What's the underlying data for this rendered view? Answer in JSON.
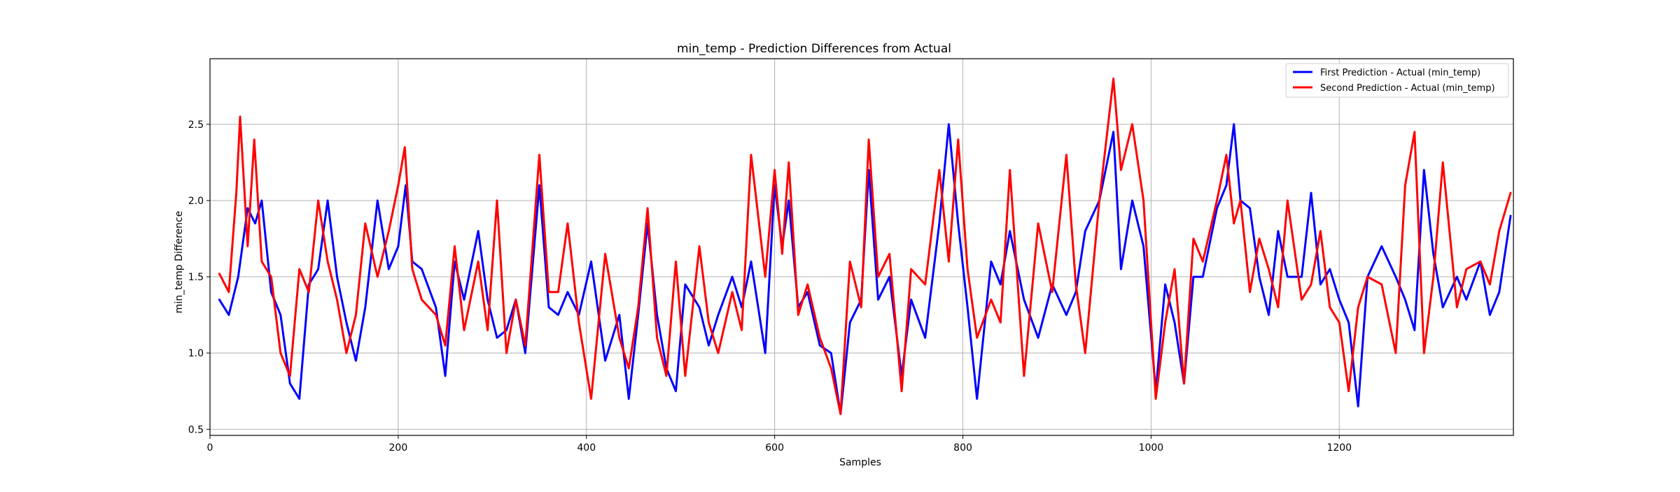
{
  "chart_data": {
    "type": "line",
    "title": "min_temp - Prediction Differences from Actual",
    "xlabel": "Samples",
    "ylabel": "min_temp Difference",
    "xlim": [
      0,
      1385
    ],
    "ylim": [
      0.46,
      2.93
    ],
    "xticks": [
      0,
      200,
      400,
      600,
      800,
      1000,
      1200
    ],
    "yticks": [
      0.5,
      1.0,
      1.5,
      2.0,
      2.5
    ],
    "xtick_labels": [
      "0",
      "200",
      "400",
      "600",
      "800",
      "1000",
      "1200"
    ],
    "ytick_labels": [
      "0.5",
      "1.0",
      "1.5",
      "2.0",
      "2.5"
    ],
    "grid": true,
    "legend_position": "top-right",
    "series": [
      {
        "name": "First Prediction - Actual (min_temp)",
        "color": "#0000ff",
        "x": [
          10,
          20,
          30,
          40,
          48,
          55,
          65,
          75,
          85,
          95,
          105,
          115,
          125,
          135,
          145,
          155,
          165,
          178,
          190,
          200,
          208,
          215,
          225,
          240,
          250,
          260,
          270,
          285,
          295,
          305,
          315,
          325,
          335,
          350,
          360,
          370,
          380,
          392,
          405,
          420,
          435,
          445,
          455,
          465,
          475,
          485,
          495,
          505,
          520,
          530,
          540,
          555,
          565,
          575,
          590,
          600,
          608,
          615,
          625,
          635,
          648,
          660,
          670,
          680,
          692,
          700,
          710,
          722,
          735,
          745,
          760,
          775,
          785,
          795,
          805,
          815,
          830,
          840,
          850,
          865,
          880,
          895,
          910,
          920,
          930,
          945,
          960,
          968,
          980,
          992,
          1005,
          1015,
          1025,
          1035,
          1045,
          1055,
          1070,
          1080,
          1088,
          1095,
          1105,
          1115,
          1125,
          1135,
          1145,
          1160,
          1170,
          1180,
          1190,
          1200,
          1210,
          1220,
          1230,
          1245,
          1260,
          1270,
          1280,
          1290,
          1300,
          1310,
          1325,
          1335,
          1350,
          1360,
          1370,
          1382
        ],
        "y": [
          1.35,
          1.25,
          1.5,
          1.95,
          1.85,
          2.0,
          1.4,
          1.25,
          0.8,
          0.7,
          1.45,
          1.55,
          2.0,
          1.5,
          1.2,
          0.95,
          1.3,
          2.0,
          1.55,
          1.7,
          2.1,
          1.6,
          1.55,
          1.3,
          0.85,
          1.6,
          1.35,
          1.8,
          1.35,
          1.1,
          1.15,
          1.35,
          1.0,
          2.1,
          1.3,
          1.25,
          1.4,
          1.25,
          1.6,
          0.95,
          1.25,
          0.7,
          1.25,
          1.85,
          1.25,
          0.9,
          0.75,
          1.45,
          1.3,
          1.05,
          1.25,
          1.5,
          1.3,
          1.6,
          1.0,
          2.1,
          1.7,
          2.0,
          1.3,
          1.4,
          1.05,
          1.0,
          0.6,
          1.2,
          1.35,
          2.2,
          1.35,
          1.5,
          0.85,
          1.35,
          1.1,
          1.85,
          2.5,
          1.85,
          1.3,
          0.7,
          1.6,
          1.45,
          1.8,
          1.35,
          1.1,
          1.45,
          1.25,
          1.4,
          1.8,
          2.0,
          2.45,
          1.55,
          2.0,
          1.7,
          0.75,
          1.45,
          1.2,
          0.8,
          1.5,
          1.5,
          1.95,
          2.1,
          2.5,
          2.0,
          1.95,
          1.5,
          1.25,
          1.8,
          1.5,
          1.5,
          2.05,
          1.45,
          1.55,
          1.35,
          1.2,
          0.65,
          1.5,
          1.7,
          1.5,
          1.35,
          1.15,
          2.2,
          1.65,
          1.3,
          1.5,
          1.35,
          1.6,
          1.25,
          1.4,
          1.9
        ]
      },
      {
        "name": "Second Prediction - Actual (min_temp)",
        "color": "#ff0000",
        "x": [
          10,
          20,
          28,
          32,
          40,
          47,
          55,
          65,
          75,
          85,
          95,
          105,
          115,
          125,
          135,
          145,
          155,
          165,
          178,
          190,
          200,
          207,
          215,
          225,
          240,
          250,
          260,
          270,
          285,
          295,
          305,
          315,
          325,
          335,
          350,
          360,
          370,
          380,
          392,
          405,
          420,
          435,
          445,
          455,
          465,
          475,
          485,
          495,
          505,
          520,
          530,
          540,
          555,
          565,
          575,
          590,
          600,
          608,
          615,
          625,
          635,
          648,
          660,
          670,
          680,
          692,
          700,
          710,
          722,
          735,
          745,
          760,
          775,
          785,
          795,
          805,
          815,
          830,
          840,
          850,
          865,
          880,
          895,
          910,
          920,
          930,
          945,
          960,
          968,
          980,
          992,
          1005,
          1015,
          1025,
          1035,
          1045,
          1055,
          1070,
          1080,
          1088,
          1095,
          1105,
          1115,
          1125,
          1135,
          1145,
          1160,
          1170,
          1180,
          1190,
          1200,
          1210,
          1220,
          1230,
          1245,
          1260,
          1270,
          1280,
          1290,
          1300,
          1310,
          1325,
          1335,
          1350,
          1360,
          1370,
          1382
        ],
        "y": [
          1.52,
          1.4,
          2.05,
          2.55,
          1.7,
          2.4,
          1.6,
          1.5,
          1.0,
          0.85,
          1.55,
          1.4,
          2.0,
          1.6,
          1.35,
          1.0,
          1.25,
          1.85,
          1.5,
          1.8,
          2.1,
          2.35,
          1.55,
          1.35,
          1.25,
          1.05,
          1.7,
          1.15,
          1.6,
          1.15,
          2.0,
          1.0,
          1.35,
          1.05,
          2.3,
          1.4,
          1.4,
          1.85,
          1.2,
          0.7,
          1.65,
          1.1,
          0.9,
          1.3,
          1.95,
          1.1,
          0.85,
          1.6,
          0.85,
          1.7,
          1.2,
          1.0,
          1.4,
          1.15,
          2.3,
          1.5,
          2.2,
          1.65,
          2.25,
          1.25,
          1.45,
          1.1,
          0.9,
          0.6,
          1.6,
          1.3,
          2.4,
          1.5,
          1.65,
          0.75,
          1.55,
          1.45,
          2.2,
          1.6,
          2.4,
          1.55,
          1.1,
          1.35,
          1.2,
          2.2,
          0.85,
          1.85,
          1.4,
          2.3,
          1.45,
          1.0,
          2.0,
          2.8,
          2.2,
          2.5,
          2.0,
          0.7,
          1.2,
          1.55,
          0.8,
          1.75,
          1.6,
          2.0,
          2.3,
          1.85,
          2.0,
          1.4,
          1.75,
          1.55,
          1.3,
          2.0,
          1.35,
          1.45,
          1.8,
          1.3,
          1.2,
          0.75,
          1.3,
          1.5,
          1.45,
          1.0,
          2.1,
          2.45,
          1.0,
          1.5,
          2.25,
          1.3,
          1.55,
          1.6,
          1.45,
          1.8,
          2.05
        ]
      }
    ]
  }
}
